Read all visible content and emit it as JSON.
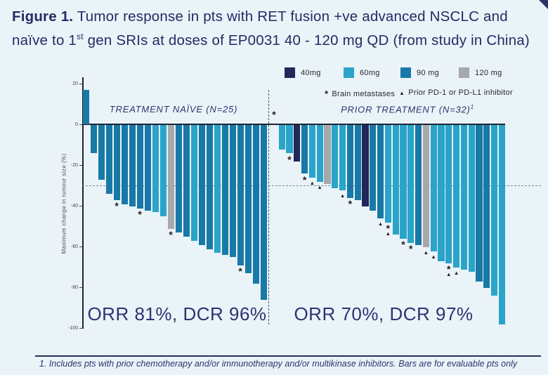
{
  "title": {
    "prefix": "Figure 1.",
    "line1": " Tumor response in pts with RET fusion +ve advanced NSCLC and",
    "line2_pre": "naïve to 1",
    "line2_sup": "st",
    "line2_post": " gen SRIs at doses of EP0031 40 - 120 mg QD (from study in China)"
  },
  "footnote": "1. Includes pts with prior chemotherapy and/or immunotherapy and/or multikinase inhibitors. Bars are for evaluable pts only",
  "chart_data": {
    "type": "bar",
    "subtype": "waterfall",
    "ylabel": "Maximum change in tumour size (%)",
    "ylim": [
      20,
      -100
    ],
    "yticks": [
      20,
      0,
      -20,
      -40,
      -60,
      -80,
      -100
    ],
    "reference_line": -30,
    "grid": false,
    "stray_annotation": {
      "symbol": "*"
    },
    "legend": {
      "items": [
        {
          "label": "40mg",
          "color": "#222659"
        },
        {
          "label": "60mg",
          "color": "#2aa4c9"
        },
        {
          "label": "90 mg",
          "color": "#1879a6"
        },
        {
          "label": "120 mg",
          "color": "#a6a8aa"
        }
      ],
      "symbol_markers": [
        {
          "symbol": "*",
          "label": "Brain metastases"
        },
        {
          "symbol": "▲",
          "label": "Prior PD-1 or PD-L1 inhibitor"
        }
      ]
    },
    "groups": [
      {
        "label": "TREATMENT NAÏVE (N=25)",
        "label_sup": "",
        "orr": "ORR 81%, DCR 96%",
        "bars": [
          {
            "value": 17,
            "dose": "90",
            "markers": []
          },
          {
            "value": -14,
            "dose": "90",
            "markers": []
          },
          {
            "value": -27,
            "dose": "90",
            "markers": []
          },
          {
            "value": -34,
            "dose": "90",
            "markers": []
          },
          {
            "value": -37,
            "dose": "90",
            "markers": [
              "*"
            ]
          },
          {
            "value": -39,
            "dose": "90",
            "markers": []
          },
          {
            "value": -40,
            "dose": "90",
            "markers": []
          },
          {
            "value": -41,
            "dose": "90",
            "markers": [
              "*"
            ]
          },
          {
            "value": -42,
            "dose": "90",
            "markers": []
          },
          {
            "value": -43,
            "dose": "60",
            "markers": []
          },
          {
            "value": -45,
            "dose": "60",
            "markers": []
          },
          {
            "value": -51,
            "dose": "120",
            "markers": [
              "*"
            ]
          },
          {
            "value": -53,
            "dose": "90",
            "markers": []
          },
          {
            "value": -55,
            "dose": "90",
            "markers": []
          },
          {
            "value": -57,
            "dose": "60",
            "markers": []
          },
          {
            "value": -59,
            "dose": "90",
            "markers": []
          },
          {
            "value": -61,
            "dose": "90",
            "markers": []
          },
          {
            "value": -63,
            "dose": "60",
            "markers": []
          },
          {
            "value": -64,
            "dose": "90",
            "markers": []
          },
          {
            "value": -65,
            "dose": "90",
            "markers": []
          },
          {
            "value": -69,
            "dose": "90",
            "markers": [
              "*"
            ]
          },
          {
            "value": -73,
            "dose": "90",
            "markers": []
          },
          {
            "value": -78,
            "dose": "90",
            "markers": []
          },
          {
            "value": -86,
            "dose": "90",
            "markers": []
          }
        ]
      },
      {
        "label": "PRIOR TREATMENT (N=32)",
        "label_sup": "1",
        "orr": "ORR 70%, DCR 97%",
        "bars": [
          {
            "value": -12,
            "dose": "60",
            "markers": []
          },
          {
            "value": -14,
            "dose": "60",
            "markers": [
              "*"
            ]
          },
          {
            "value": -18,
            "dose": "40",
            "markers": []
          },
          {
            "value": -24,
            "dose": "90",
            "markers": [
              "*"
            ]
          },
          {
            "value": -26,
            "dose": "60",
            "markers": [
              "▲"
            ]
          },
          {
            "value": -28,
            "dose": "60",
            "markers": [
              "▲"
            ]
          },
          {
            "value": -29,
            "dose": "120",
            "markers": []
          },
          {
            "value": -31,
            "dose": "60",
            "markers": []
          },
          {
            "value": -32,
            "dose": "60",
            "markers": [
              "▲"
            ]
          },
          {
            "value": -36,
            "dose": "90",
            "markers": [
              "*"
            ]
          },
          {
            "value": -37,
            "dose": "90",
            "markers": []
          },
          {
            "value": -40,
            "dose": "40",
            "markers": []
          },
          {
            "value": -42,
            "dose": "90",
            "markers": []
          },
          {
            "value": -46,
            "dose": "90",
            "markers": [
              "▲"
            ]
          },
          {
            "value": -48,
            "dose": "60",
            "markers": [
              "*",
              "▲"
            ]
          },
          {
            "value": -54,
            "dose": "60",
            "markers": []
          },
          {
            "value": -56,
            "dose": "60",
            "markers": [
              "*"
            ]
          },
          {
            "value": -58,
            "dose": "60",
            "markers": [
              "*"
            ]
          },
          {
            "value": -59,
            "dose": "90",
            "markers": []
          },
          {
            "value": -60,
            "dose": "120",
            "markers": [
              "▲"
            ]
          },
          {
            "value": -62,
            "dose": "60",
            "markers": [
              "▲"
            ]
          },
          {
            "value": -67,
            "dose": "60",
            "markers": []
          },
          {
            "value": -68,
            "dose": "60",
            "markers": [
              "*",
              "▲"
            ]
          },
          {
            "value": -70,
            "dose": "60",
            "markers": [
              "▲"
            ]
          },
          {
            "value": -71,
            "dose": "60",
            "markers": []
          },
          {
            "value": -72,
            "dose": "60",
            "markers": []
          },
          {
            "value": -77,
            "dose": "90",
            "markers": []
          },
          {
            "value": -80,
            "dose": "90",
            "markers": []
          },
          {
            "value": -84,
            "dose": "60",
            "markers": []
          },
          {
            "value": -98,
            "dose": "60",
            "markers": []
          }
        ]
      }
    ]
  }
}
